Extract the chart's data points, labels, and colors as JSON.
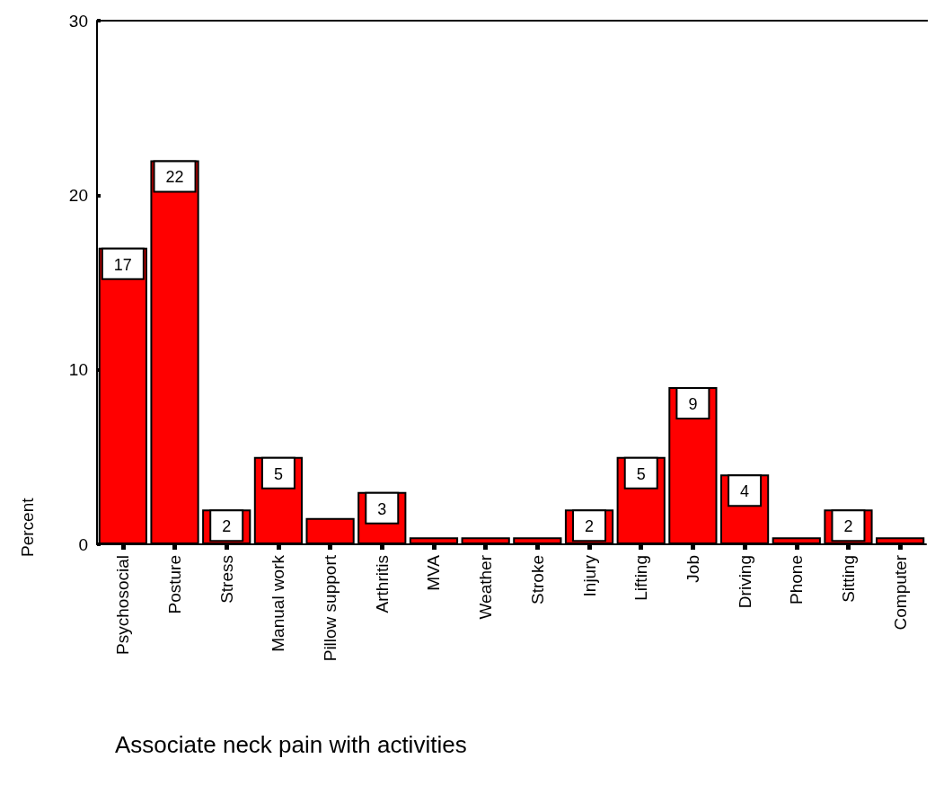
{
  "chart_data": {
    "type": "bar",
    "xlabel": "Associate neck pain with activities",
    "ylabel": "Percent",
    "categories": [
      "Psychosocial",
      "Posture",
      "Stress",
      "Manual work",
      "Pillow support",
      "Arthritis",
      "MVA",
      "Weather",
      "Stroke",
      "Injury",
      "Lifting",
      "Job",
      "Driving",
      "Phone",
      "Sitting",
      "Computer"
    ],
    "values": [
      17,
      22,
      2,
      5,
      1.5,
      3,
      0.4,
      0.4,
      0.4,
      2,
      5,
      9,
      4,
      0.4,
      2,
      0.4
    ],
    "value_labels": [
      "17",
      "22",
      "2",
      "5",
      null,
      "3",
      null,
      null,
      null,
      "2",
      "5",
      "9",
      "4",
      null,
      "2",
      null
    ],
    "color": "#ff0000",
    "ylim": [
      0,
      30
    ],
    "yticks": [
      0,
      10,
      20,
      30
    ],
    "grid": false
  }
}
